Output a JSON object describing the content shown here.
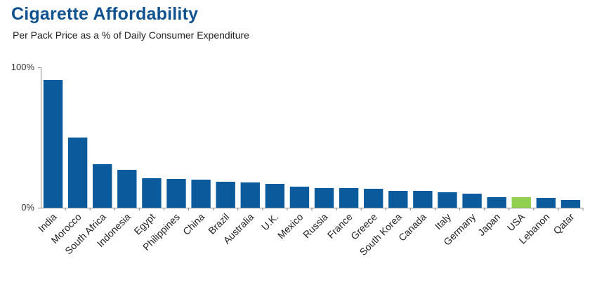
{
  "title": "Cigarette Affordability",
  "subtitle": "Per Pack Price as a % of Daily Consumer Expenditure",
  "colors": {
    "bar": "#0a5a9c",
    "highlight": "#92d050",
    "title": "#10528f"
  },
  "chart_data": {
    "type": "bar",
    "title": "Cigarette Affordability",
    "subtitle": "Per Pack Price as a % of Daily Consumer Expenditure",
    "xlabel": "",
    "ylabel": "",
    "ylim": [
      0,
      100
    ],
    "y_ticks": [
      "0%",
      "100%"
    ],
    "grid": false,
    "highlight_category": "USA",
    "categories": [
      "India",
      "Morocco",
      "South Africa",
      "Indonesia",
      "Egypt",
      "Philippines",
      "China",
      "Brazil",
      "Australia",
      "U.K.",
      "Mexico",
      "Russia",
      "France",
      "Greece",
      "South Korea",
      "Canada",
      "Italy",
      "Germany",
      "Japan",
      "USA",
      "Lebanon",
      "Qatar"
    ],
    "values": [
      91,
      50,
      31,
      27,
      21,
      20.5,
      20,
      18.5,
      18,
      17,
      15,
      14,
      14,
      13.5,
      12,
      12,
      11,
      10,
      7.5,
      7.5,
      7,
      5.5
    ]
  }
}
